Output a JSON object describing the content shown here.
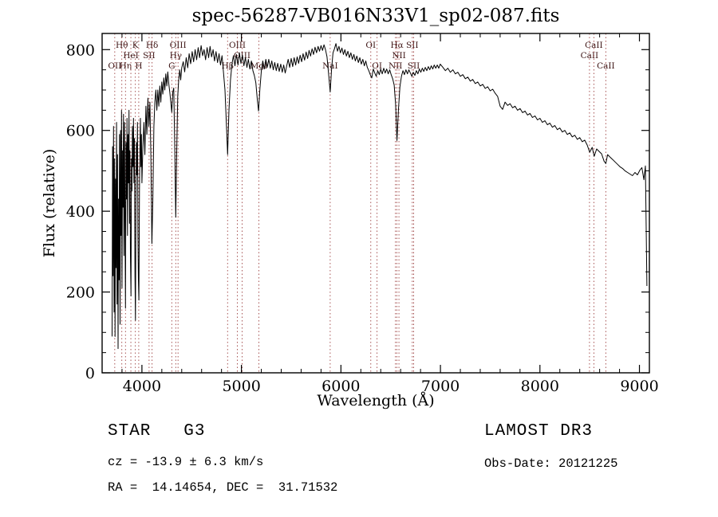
{
  "title": "spec-56287-VB016N33V1_sp02-087.fits",
  "footer": {
    "class_line": "STAR   G3",
    "survey": "LAMOST DR3",
    "cz_line": "cz = -13.9 ± 6.3 km/s",
    "obsdate_line": "Obs-Date: 20121225",
    "radec_line": "RA =  14.14654, DEC =  31.71532"
  },
  "chart_data": {
    "type": "line",
    "title": "spec-56287-VB016N33V1_sp02-087.fits",
    "xlabel": "Wavelength (Å)",
    "ylabel": "Flux (relative)",
    "xlim": [
      3600,
      9100
    ],
    "ylim": [
      0,
      840
    ],
    "xticks": [
      4000,
      5000,
      6000,
      7000,
      8000,
      9000
    ],
    "yticks": [
      0,
      200,
      400,
      600,
      800
    ],
    "x_minor_step": 200,
    "y_minor_step": 50,
    "grid": false,
    "line_color": "#000000",
    "marker_line_color": "#9e4343",
    "marker_label_color": "#3d1414",
    "spectral_lines": [
      {
        "wavelength": 3727,
        "label": "OII",
        "row": 3
      },
      {
        "wavelength": 3798,
        "label": "Hθ",
        "row": 1
      },
      {
        "wavelength": 3835,
        "label": "Hη",
        "row": 3
      },
      {
        "wavelength": 3889,
        "label": "HeI",
        "row": 2
      },
      {
        "wavelength": 3934,
        "label": "K",
        "row": 1
      },
      {
        "wavelength": 3968,
        "label": "H",
        "row": 3
      },
      {
        "wavelength": 4072,
        "label": "SII",
        "row": 2
      },
      {
        "wavelength": 4102,
        "label": "Hδ",
        "row": 1
      },
      {
        "wavelength": 4300,
        "label": "G",
        "row": 3
      },
      {
        "wavelength": 4340,
        "label": "Hγ",
        "row": 2
      },
      {
        "wavelength": 4363,
        "label": "OIII",
        "row": 1
      },
      {
        "wavelength": 4861,
        "label": "Hβ",
        "row": 3
      },
      {
        "wavelength": 4959,
        "label": "OIII",
        "row": 1
      },
      {
        "wavelength": 5007,
        "label": "OIII",
        "row": 2
      },
      {
        "wavelength": 5175,
        "label": "MgI",
        "row": 3
      },
      {
        "wavelength": 5892,
        "label": "NaI",
        "row": 3
      },
      {
        "wavelength": 6300,
        "label": "OI",
        "row": 1
      },
      {
        "wavelength": 6363,
        "label": "OI",
        "row": 3
      },
      {
        "wavelength": 6548,
        "label": "NII",
        "row": 3
      },
      {
        "wavelength": 6563,
        "label": "Hα",
        "row": 1
      },
      {
        "wavelength": 6583,
        "label": "NII",
        "row": 2
      },
      {
        "wavelength": 6717,
        "label": "SII",
        "row": 1
      },
      {
        "wavelength": 6731,
        "label": "SII",
        "row": 3
      },
      {
        "wavelength": 8498,
        "label": "CaII",
        "row": 2
      },
      {
        "wavelength": 8542,
        "label": "CaII",
        "row": 1
      },
      {
        "wavelength": 8662,
        "label": "CaII",
        "row": 3
      }
    ],
    "points": [
      [
        3700,
        90
      ],
      [
        3705,
        560
      ],
      [
        3710,
        240
      ],
      [
        3715,
        610
      ],
      [
        3720,
        150
      ],
      [
        3725,
        530
      ],
      [
        3730,
        90
      ],
      [
        3735,
        480
      ],
      [
        3740,
        260
      ],
      [
        3745,
        620
      ],
      [
        3750,
        170
      ],
      [
        3755,
        540
      ],
      [
        3760,
        60
      ],
      [
        3765,
        430
      ],
      [
        3770,
        230
      ],
      [
        3775,
        590
      ],
      [
        3780,
        120
      ],
      [
        3785,
        600
      ],
      [
        3790,
        340
      ],
      [
        3795,
        650
      ],
      [
        3800,
        210
      ],
      [
        3805,
        550
      ],
      [
        3810,
        410
      ],
      [
        3815,
        640
      ],
      [
        3820,
        290
      ],
      [
        3825,
        620
      ],
      [
        3830,
        370
      ],
      [
        3835,
        160
      ],
      [
        3840,
        570
      ],
      [
        3845,
        430
      ],
      [
        3850,
        630
      ],
      [
        3855,
        340
      ],
      [
        3860,
        590
      ],
      [
        3865,
        470
      ],
      [
        3870,
        650
      ],
      [
        3875,
        370
      ],
      [
        3880,
        550
      ],
      [
        3885,
        290
      ],
      [
        3890,
        190
      ],
      [
        3895,
        530
      ],
      [
        3900,
        450
      ],
      [
        3905,
        610
      ],
      [
        3910,
        510
      ],
      [
        3915,
        630
      ],
      [
        3920,
        470
      ],
      [
        3925,
        580
      ],
      [
        3930,
        240
      ],
      [
        3935,
        130
      ],
      [
        3940,
        420
      ],
      [
        3945,
        570
      ],
      [
        3950,
        490
      ],
      [
        3955,
        620
      ],
      [
        3960,
        340
      ],
      [
        3965,
        230
      ],
      [
        3970,
        180
      ],
      [
        3975,
        450
      ],
      [
        3980,
        550
      ],
      [
        3985,
        630
      ],
      [
        3990,
        510
      ],
      [
        3995,
        590
      ],
      [
        4000,
        470
      ],
      [
        4010,
        560
      ],
      [
        4020,
        620
      ],
      [
        4030,
        540
      ],
      [
        4040,
        660
      ],
      [
        4050,
        590
      ],
      [
        4060,
        680
      ],
      [
        4070,
        610
      ],
      [
        4080,
        670
      ],
      [
        4090,
        540
      ],
      [
        4100,
        320
      ],
      [
        4110,
        430
      ],
      [
        4120,
        610
      ],
      [
        4130,
        670
      ],
      [
        4140,
        700
      ],
      [
        4150,
        650
      ],
      [
        4160,
        700
      ],
      [
        4170,
        660
      ],
      [
        4180,
        710
      ],
      [
        4190,
        670
      ],
      [
        4200,
        720
      ],
      [
        4210,
        690
      ],
      [
        4220,
        730
      ],
      [
        4230,
        700
      ],
      [
        4240,
        740
      ],
      [
        4250,
        710
      ],
      [
        4260,
        745
      ],
      [
        4270,
        715
      ],
      [
        4280,
        695
      ],
      [
        4290,
        670
      ],
      [
        4300,
        645
      ],
      [
        4310,
        695
      ],
      [
        4320,
        705
      ],
      [
        4330,
        550
      ],
      [
        4340,
        385
      ],
      [
        4350,
        545
      ],
      [
        4360,
        685
      ],
      [
        4370,
        725
      ],
      [
        4380,
        750
      ],
      [
        4390,
        725
      ],
      [
        4400,
        755
      ],
      [
        4415,
        770
      ],
      [
        4430,
        745
      ],
      [
        4445,
        780
      ],
      [
        4460,
        755
      ],
      [
        4475,
        790
      ],
      [
        4490,
        765
      ],
      [
        4505,
        795
      ],
      [
        4520,
        770
      ],
      [
        4535,
        800
      ],
      [
        4550,
        775
      ],
      [
        4565,
        805
      ],
      [
        4580,
        780
      ],
      [
        4595,
        810
      ],
      [
        4610,
        785
      ],
      [
        4625,
        800
      ],
      [
        4640,
        775
      ],
      [
        4655,
        805
      ],
      [
        4670,
        780
      ],
      [
        4685,
        808
      ],
      [
        4700,
        782
      ],
      [
        4715,
        800
      ],
      [
        4730,
        772
      ],
      [
        4745,
        795
      ],
      [
        4760,
        768
      ],
      [
        4775,
        790
      ],
      [
        4790,
        762
      ],
      [
        4805,
        785
      ],
      [
        4820,
        742
      ],
      [
        4835,
        700
      ],
      [
        4850,
        610
      ],
      [
        4861,
        540
      ],
      [
        4875,
        650
      ],
      [
        4890,
        725
      ],
      [
        4905,
        765
      ],
      [
        4920,
        785
      ],
      [
        4935,
        760
      ],
      [
        4950,
        788
      ],
      [
        4965,
        762
      ],
      [
        4980,
        792
      ],
      [
        4995,
        766
      ],
      [
        5010,
        786
      ],
      [
        5025,
        760
      ],
      [
        5040,
        780
      ],
      [
        5055,
        756
      ],
      [
        5070,
        776
      ],
      [
        5085,
        752
      ],
      [
        5100,
        772
      ],
      [
        5115,
        748
      ],
      [
        5130,
        736
      ],
      [
        5145,
        718
      ],
      [
        5160,
        675
      ],
      [
        5172,
        648
      ],
      [
        5185,
        700
      ],
      [
        5200,
        748
      ],
      [
        5215,
        772
      ],
      [
        5230,
        752
      ],
      [
        5245,
        776
      ],
      [
        5260,
        756
      ],
      [
        5275,
        776
      ],
      [
        5290,
        754
      ],
      [
        5305,
        772
      ],
      [
        5320,
        750
      ],
      [
        5335,
        768
      ],
      [
        5350,
        748
      ],
      [
        5365,
        766
      ],
      [
        5380,
        746
      ],
      [
        5395,
        764
      ],
      [
        5410,
        744
      ],
      [
        5425,
        762
      ],
      [
        5440,
        742
      ],
      [
        5455,
        760
      ],
      [
        5470,
        776
      ],
      [
        5485,
        756
      ],
      [
        5500,
        778
      ],
      [
        5515,
        758
      ],
      [
        5530,
        780
      ],
      [
        5545,
        762
      ],
      [
        5560,
        782
      ],
      [
        5575,
        766
      ],
      [
        5590,
        786
      ],
      [
        5605,
        770
      ],
      [
        5620,
        790
      ],
      [
        5635,
        774
      ],
      [
        5650,
        794
      ],
      [
        5665,
        778
      ],
      [
        5680,
        798
      ],
      [
        5695,
        784
      ],
      [
        5710,
        802
      ],
      [
        5725,
        788
      ],
      [
        5740,
        806
      ],
      [
        5755,
        792
      ],
      [
        5770,
        808
      ],
      [
        5785,
        796
      ],
      [
        5800,
        810
      ],
      [
        5815,
        798
      ],
      [
        5830,
        812
      ],
      [
        5845,
        800
      ],
      [
        5860,
        782
      ],
      [
        5875,
        742
      ],
      [
        5892,
        695
      ],
      [
        5905,
        748
      ],
      [
        5920,
        792
      ],
      [
        5935,
        802
      ],
      [
        5950,
        815
      ],
      [
        5965,
        796
      ],
      [
        5980,
        808
      ],
      [
        5995,
        792
      ],
      [
        6010,
        804
      ],
      [
        6025,
        788
      ],
      [
        6040,
        800
      ],
      [
        6055,
        784
      ],
      [
        6070,
        796
      ],
      [
        6085,
        780
      ],
      [
        6100,
        792
      ],
      [
        6115,
        776
      ],
      [
        6130,
        788
      ],
      [
        6145,
        772
      ],
      [
        6160,
        784
      ],
      [
        6175,
        768
      ],
      [
        6190,
        780
      ],
      [
        6205,
        764
      ],
      [
        6220,
        776
      ],
      [
        6235,
        760
      ],
      [
        6250,
        772
      ],
      [
        6265,
        756
      ],
      [
        6280,
        748
      ],
      [
        6295,
        738
      ],
      [
        6310,
        730
      ],
      [
        6325,
        752
      ],
      [
        6340,
        742
      ],
      [
        6355,
        734
      ],
      [
        6370,
        748
      ],
      [
        6385,
        738
      ],
      [
        6400,
        752
      ],
      [
        6415,
        740
      ],
      [
        6430,
        754
      ],
      [
        6445,
        742
      ],
      [
        6460,
        752
      ],
      [
        6475,
        740
      ],
      [
        6490,
        750
      ],
      [
        6505,
        738
      ],
      [
        6520,
        728
      ],
      [
        6535,
        712
      ],
      [
        6550,
        665
      ],
      [
        6563,
        575
      ],
      [
        6578,
        650
      ],
      [
        6593,
        708
      ],
      [
        6608,
        734
      ],
      [
        6623,
        748
      ],
      [
        6638,
        738
      ],
      [
        6653,
        750
      ],
      [
        6668,
        740
      ],
      [
        6683,
        750
      ],
      [
        6698,
        742
      ],
      [
        6713,
        734
      ],
      [
        6728,
        744
      ],
      [
        6743,
        736
      ],
      [
        6758,
        748
      ],
      [
        6773,
        740
      ],
      [
        6788,
        752
      ],
      [
        6803,
        744
      ],
      [
        6818,
        754
      ],
      [
        6833,
        746
      ],
      [
        6848,
        756
      ],
      [
        6863,
        748
      ],
      [
        6878,
        758
      ],
      [
        6893,
        750
      ],
      [
        6908,
        760
      ],
      [
        6923,
        752
      ],
      [
        6938,
        762
      ],
      [
        6953,
        754
      ],
      [
        6968,
        762
      ],
      [
        6983,
        754
      ],
      [
        6998,
        764
      ],
      [
        7025,
        756
      ],
      [
        7050,
        748
      ],
      [
        7075,
        754
      ],
      [
        7100,
        744
      ],
      [
        7125,
        750
      ],
      [
        7150,
        740
      ],
      [
        7175,
        744
      ],
      [
        7200,
        734
      ],
      [
        7225,
        738
      ],
      [
        7250,
        728
      ],
      [
        7275,
        732
      ],
      [
        7300,
        722
      ],
      [
        7325,
        726
      ],
      [
        7350,
        716
      ],
      [
        7375,
        720
      ],
      [
        7400,
        710
      ],
      [
        7425,
        714
      ],
      [
        7450,
        704
      ],
      [
        7475,
        708
      ],
      [
        7500,
        698
      ],
      [
        7525,
        702
      ],
      [
        7550,
        692
      ],
      [
        7575,
        684
      ],
      [
        7600,
        660
      ],
      [
        7625,
        652
      ],
      [
        7650,
        670
      ],
      [
        7675,
        662
      ],
      [
        7700,
        666
      ],
      [
        7725,
        656
      ],
      [
        7750,
        660
      ],
      [
        7775,
        650
      ],
      [
        7800,
        654
      ],
      [
        7825,
        644
      ],
      [
        7850,
        648
      ],
      [
        7875,
        638
      ],
      [
        7900,
        642
      ],
      [
        7925,
        632
      ],
      [
        7950,
        636
      ],
      [
        7975,
        626
      ],
      [
        8000,
        630
      ],
      [
        8025,
        620
      ],
      [
        8050,
        624
      ],
      [
        8075,
        614
      ],
      [
        8100,
        618
      ],
      [
        8125,
        608
      ],
      [
        8150,
        612
      ],
      [
        8175,
        602
      ],
      [
        8200,
        606
      ],
      [
        8225,
        596
      ],
      [
        8250,
        600
      ],
      [
        8275,
        590
      ],
      [
        8300,
        594
      ],
      [
        8325,
        584
      ],
      [
        8350,
        588
      ],
      [
        8375,
        578
      ],
      [
        8400,
        582
      ],
      [
        8425,
        572
      ],
      [
        8450,
        576
      ],
      [
        8475,
        564
      ],
      [
        8500,
        546
      ],
      [
        8525,
        558
      ],
      [
        8545,
        536
      ],
      [
        8570,
        554
      ],
      [
        8595,
        548
      ],
      [
        8620,
        542
      ],
      [
        8645,
        524
      ],
      [
        8662,
        518
      ],
      [
        8680,
        540
      ],
      [
        8705,
        534
      ],
      [
        8730,
        528
      ],
      [
        8755,
        522
      ],
      [
        8780,
        516
      ],
      [
        8805,
        510
      ],
      [
        8830,
        506
      ],
      [
        8855,
        500
      ],
      [
        8880,
        496
      ],
      [
        8905,
        492
      ],
      [
        8930,
        488
      ],
      [
        8955,
        496
      ],
      [
        8980,
        490
      ],
      [
        9005,
        502
      ],
      [
        9025,
        508
      ],
      [
        9045,
        478
      ],
      [
        9060,
        512
      ],
      [
        9075,
        215
      ]
    ]
  }
}
